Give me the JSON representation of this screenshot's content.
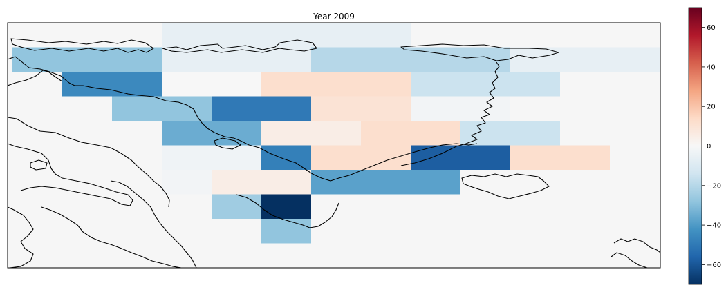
{
  "chart_data": {
    "type": "heatmap",
    "title": "Year 2009",
    "colormap": "RdBu_r",
    "vmin": -70,
    "vmax": 70,
    "colorbar": {
      "ticks": [
        60,
        40,
        20,
        0,
        -20,
        -40,
        -60
      ],
      "labels": [
        "60",
        "40",
        "20",
        "0",
        "−20",
        "−40",
        "−60"
      ]
    },
    "grid": {
      "columns": 13,
      "rows": 10
    },
    "background_value": 0,
    "cells": [
      {
        "col": 3,
        "row": 0,
        "value": -6
      },
      {
        "col": 4,
        "row": 0,
        "value": -6
      },
      {
        "col": 5,
        "row": 0,
        "value": -6
      },
      {
        "col": 6,
        "row": 0,
        "value": -6
      },
      {
        "col": 7,
        "row": 0,
        "value": -6
      },
      {
        "col": 0,
        "row": 1,
        "value": -28
      },
      {
        "col": 1,
        "row": 1,
        "value": -28
      },
      {
        "col": 2,
        "row": 1,
        "value": -28
      },
      {
        "col": 3,
        "row": 1,
        "value": -6
      },
      {
        "col": 4,
        "row": 1,
        "value": -6
      },
      {
        "col": 5,
        "row": 1,
        "value": -6
      },
      {
        "col": 6,
        "row": 1,
        "value": -20
      },
      {
        "col": 7,
        "row": 1,
        "value": -20
      },
      {
        "col": 8,
        "row": 1,
        "value": -20
      },
      {
        "col": 9,
        "row": 1,
        "value": -20
      },
      {
        "col": 10,
        "row": 1,
        "value": -6
      },
      {
        "col": 11,
        "row": 1,
        "value": -6
      },
      {
        "col": 12,
        "row": 1,
        "value": -6
      },
      {
        "col": 1,
        "row": 2,
        "value": -45
      },
      {
        "col": 2,
        "row": 2,
        "value": -45
      },
      {
        "col": 3,
        "row": 2,
        "value": 0
      },
      {
        "col": 4,
        "row": 2,
        "value": 0
      },
      {
        "col": 5,
        "row": 2,
        "value": 12
      },
      {
        "col": 6,
        "row": 2,
        "value": 12
      },
      {
        "col": 7,
        "row": 2,
        "value": 12
      },
      {
        "col": 8,
        "row": 2,
        "value": -15
      },
      {
        "col": 9,
        "row": 2,
        "value": -15
      },
      {
        "col": 10,
        "row": 2,
        "value": -15
      },
      {
        "col": 2,
        "row": 3,
        "value": -28
      },
      {
        "col": 3,
        "row": 3,
        "value": -28
      },
      {
        "col": 4,
        "row": 3,
        "value": -50
      },
      {
        "col": 5,
        "row": 3,
        "value": -50
      },
      {
        "col": 6,
        "row": 3,
        "value": 10
      },
      {
        "col": 7,
        "row": 3,
        "value": 10
      },
      {
        "col": 8,
        "row": 3,
        "value": -2
      },
      {
        "col": 9,
        "row": 3,
        "value": -2
      },
      {
        "col": 3,
        "row": 4,
        "value": -35
      },
      {
        "col": 4,
        "row": 4,
        "value": -35
      },
      {
        "col": 5,
        "row": 4,
        "value": 5
      },
      {
        "col": 6,
        "row": 4,
        "value": 5
      },
      {
        "col": 7,
        "row": 4,
        "value": 12
      },
      {
        "col": 8,
        "row": 4,
        "value": 12
      },
      {
        "col": 9,
        "row": 4,
        "value": -15
      },
      {
        "col": 10,
        "row": 4,
        "value": -15
      },
      {
        "col": 3,
        "row": 5,
        "value": -3
      },
      {
        "col": 4,
        "row": 5,
        "value": -3
      },
      {
        "col": 5,
        "row": 5,
        "value": -48
      },
      {
        "col": 6,
        "row": 5,
        "value": 12
      },
      {
        "col": 7,
        "row": 5,
        "value": 12
      },
      {
        "col": 8,
        "row": 5,
        "value": -58
      },
      {
        "col": 9,
        "row": 5,
        "value": -58
      },
      {
        "col": 10,
        "row": 5,
        "value": 12
      },
      {
        "col": 11,
        "row": 5,
        "value": 12
      },
      {
        "col": 3,
        "row": 6,
        "value": -2
      },
      {
        "col": 4,
        "row": 6,
        "value": 5
      },
      {
        "col": 5,
        "row": 6,
        "value": 5
      },
      {
        "col": 6,
        "row": 6,
        "value": -38
      },
      {
        "col": 7,
        "row": 6,
        "value": -38
      },
      {
        "col": 8,
        "row": 6,
        "value": -38
      },
      {
        "col": 4,
        "row": 7,
        "value": -25
      },
      {
        "col": 5,
        "row": 7,
        "value": -70
      },
      {
        "col": 5,
        "row": 8,
        "value": -28
      }
    ]
  }
}
